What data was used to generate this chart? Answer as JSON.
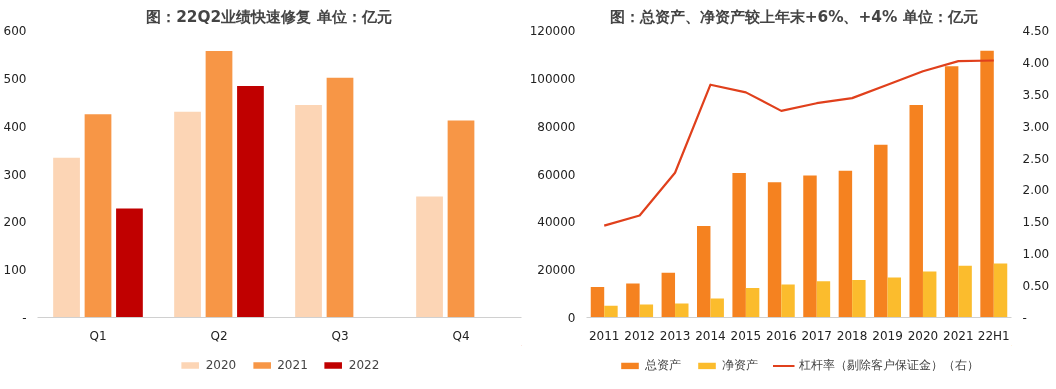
{
  "chart_data": [
    {
      "type": "bar",
      "title": "图：22Q2业绩快速修复     单位：亿元",
      "categories": [
        "Q1",
        "Q2",
        "Q3",
        "Q4"
      ],
      "series": [
        {
          "name": "2020",
          "color": "#fcd5b5",
          "values": [
            334,
            430,
            444,
            253
          ]
        },
        {
          "name": "2021",
          "color": "#f79646",
          "values": [
            425,
            557,
            501,
            412
          ]
        },
        {
          "name": "2022",
          "color": "#c00000",
          "values": [
            228,
            484,
            null,
            null
          ]
        }
      ],
      "ylim": [
        0,
        600
      ],
      "yticks": [
        {
          "value": 0,
          "label": "-"
        },
        100,
        200,
        300,
        400,
        500,
        600
      ],
      "grid": false,
      "legend": "bottom"
    },
    {
      "type": "bar",
      "title": "图：总资产、净资产较上年末+6%、+4%   单位：亿元",
      "categories": [
        "2011",
        "2012",
        "2013",
        "2014",
        "2015",
        "2016",
        "2017",
        "2018",
        "2019",
        "2020",
        "2021",
        "22H1"
      ],
      "series": [
        {
          "name": "总资产",
          "color": "#f58220",
          "values": [
            12800,
            14200,
            18700,
            38300,
            60400,
            56500,
            59400,
            61400,
            72200,
            88900,
            105100,
            111500
          ]
        },
        {
          "name": "净资产",
          "color": "#fbbc2d",
          "values": [
            4900,
            5400,
            5900,
            7900,
            12300,
            13800,
            15200,
            15700,
            16700,
            19200,
            21600,
            22600
          ]
        },
        {
          "name": "杠杆率（剔除客户保证金）（右）",
          "type": "line",
          "axis": "y2",
          "color": "#e0401c",
          "values": [
            1.44,
            1.6,
            2.27,
            3.65,
            3.53,
            3.24,
            3.36,
            3.44,
            3.65,
            3.86,
            4.02,
            4.03
          ]
        }
      ],
      "ylim": [
        0,
        120000
      ],
      "yticks": [
        0,
        20000,
        40000,
        60000,
        80000,
        100000,
        120000
      ],
      "y2lim": [
        0,
        4.5
      ],
      "y2ticks": [
        {
          "value": 0,
          "label": "-"
        },
        {
          "value": 0.5,
          "label": "0.50"
        },
        {
          "value": 1,
          "label": "1.00"
        },
        {
          "value": 1.5,
          "label": "1.50"
        },
        {
          "value": 2,
          "label": "2.00"
        },
        {
          "value": 2.5,
          "label": "2.50"
        },
        {
          "value": 3,
          "label": "3.00"
        },
        {
          "value": 3.5,
          "label": "3.50"
        },
        {
          "value": 4,
          "label": "4.00"
        },
        {
          "value": 4.5,
          "label": "4.50"
        }
      ],
      "grid": false,
      "legend": "bottom",
      "marker": "none",
      "line_style": "solid"
    }
  ]
}
